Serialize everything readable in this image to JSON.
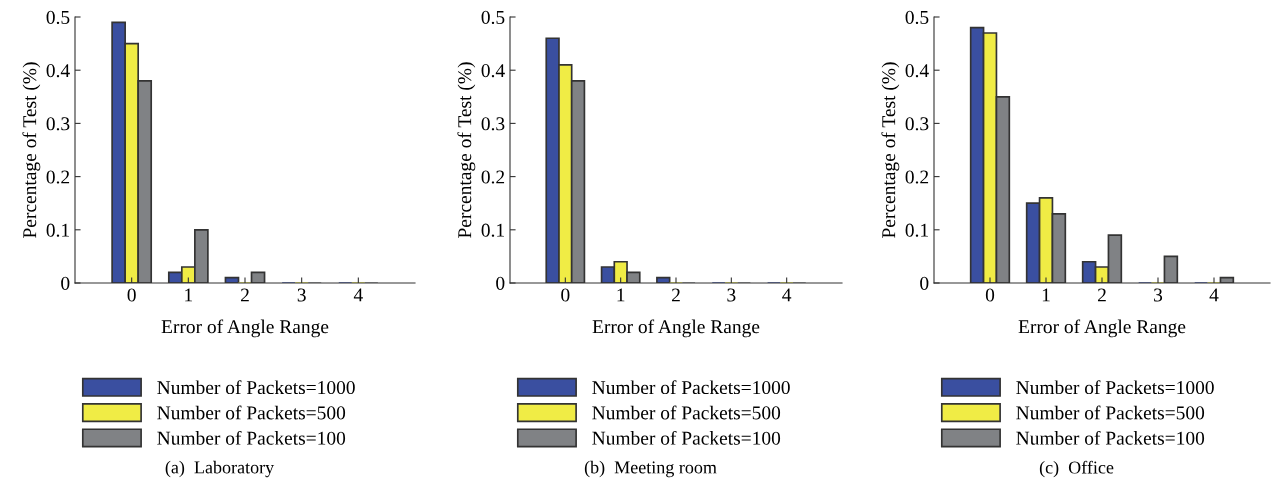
{
  "chart_data": [
    {
      "type": "bar",
      "xlabel": "Error of Angle Range",
      "ylabel": "Percentage of Test (%)",
      "x": [
        0,
        1,
        2,
        3,
        4
      ],
      "xlim": [
        -1,
        5
      ],
      "xticks": [
        0,
        1,
        2,
        3,
        4
      ],
      "ylim": [
        0,
        0.5
      ],
      "yticks": [
        0,
        0.1,
        0.2,
        0.3,
        0.4,
        0.5
      ],
      "grid": false,
      "legend": "bottom",
      "annotations": [
        "(a)  Laboratory"
      ],
      "series": [
        {
          "name": "Number of Packets=1000",
          "color": "#3a4fa0",
          "values": [
            0.49,
            0.02,
            0.01,
            0,
            0
          ]
        },
        {
          "name": "Number of Packets=500",
          "color": "#f0ec45",
          "values": [
            0.45,
            0.03,
            0,
            0,
            0
          ]
        },
        {
          "name": "Number of Packets=100",
          "color": "#808285",
          "values": [
            0.38,
            0.1,
            0.02,
            0,
            0
          ]
        }
      ]
    },
    {
      "type": "bar",
      "xlabel": "Error of Angle Range",
      "ylabel": "Percentage of Test (%)",
      "x": [
        0,
        1,
        2,
        3,
        4
      ],
      "xlim": [
        -1,
        5
      ],
      "xticks": [
        0,
        1,
        2,
        3,
        4
      ],
      "ylim": [
        0,
        0.5
      ],
      "yticks": [
        0,
        0.1,
        0.2,
        0.3,
        0.4,
        0.5
      ],
      "grid": false,
      "legend": "bottom",
      "annotations": [
        "(b)  Meeting room"
      ],
      "series": [
        {
          "name": "Number of Packets=1000",
          "color": "#3a4fa0",
          "values": [
            0.46,
            0.03,
            0.01,
            0,
            0
          ]
        },
        {
          "name": "Number of Packets=500",
          "color": "#f0ec45",
          "values": [
            0.41,
            0.04,
            0,
            0,
            0
          ]
        },
        {
          "name": "Number of Packets=100",
          "color": "#808285",
          "values": [
            0.38,
            0.02,
            0,
            0,
            0
          ]
        }
      ]
    },
    {
      "type": "bar",
      "xlabel": "Error of Angle Range",
      "ylabel": "Percentage of Test (%)",
      "x": [
        0,
        1,
        2,
        3,
        4
      ],
      "xlim": [
        -1,
        5
      ],
      "xticks": [
        0,
        1,
        2,
        3,
        4
      ],
      "ylim": [
        0,
        0.5
      ],
      "yticks": [
        0,
        0.1,
        0.2,
        0.3,
        0.4,
        0.5
      ],
      "grid": false,
      "legend": "bottom",
      "annotations": [
        "(c)  Office"
      ],
      "series": [
        {
          "name": "Number of Packets=1000",
          "color": "#3a4fa0",
          "values": [
            0.48,
            0.15,
            0.04,
            0,
            0
          ]
        },
        {
          "name": "Number of Packets=500",
          "color": "#f0ec45",
          "values": [
            0.47,
            0.16,
            0.03,
            0,
            0
          ]
        },
        {
          "name": "Number of Packets=100",
          "color": "#808285",
          "values": [
            0.35,
            0.13,
            0.09,
            0.05,
            0.01
          ]
        }
      ]
    }
  ]
}
